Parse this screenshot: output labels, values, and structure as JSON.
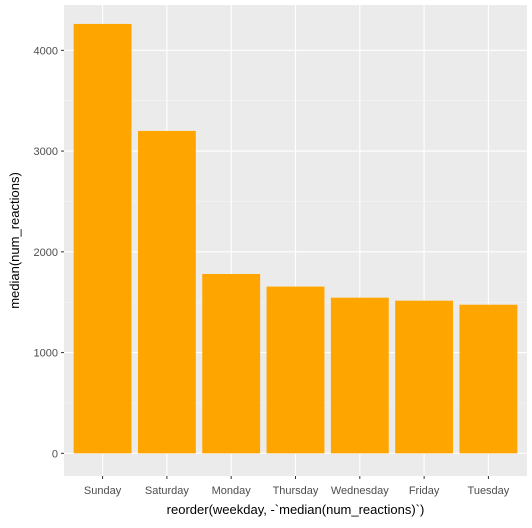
{
  "chart_data": {
    "type": "bar",
    "categories": [
      "Sunday",
      "Saturday",
      "Monday",
      "Thursday",
      "Wednesday",
      "Friday",
      "Tuesday"
    ],
    "values": [
      4262,
      3200,
      1780,
      1655,
      1545,
      1515,
      1475
    ],
    "xlabel": "reorder(weekday, -`median(num_reactions)`)",
    "ylabel": "median(num_reactions)",
    "ylim": [
      -225,
      4450
    ],
    "yticks": [
      0,
      1000,
      2000,
      3000,
      4000
    ],
    "grid": true,
    "colors": {
      "bar": "#FFA500",
      "panel": "#EBEBEB",
      "grid_major": "#FFFFFF",
      "grid_minor": "#F5F5F5",
      "tick_text": "#4D4D4D",
      "axis_title": "#000000"
    }
  }
}
